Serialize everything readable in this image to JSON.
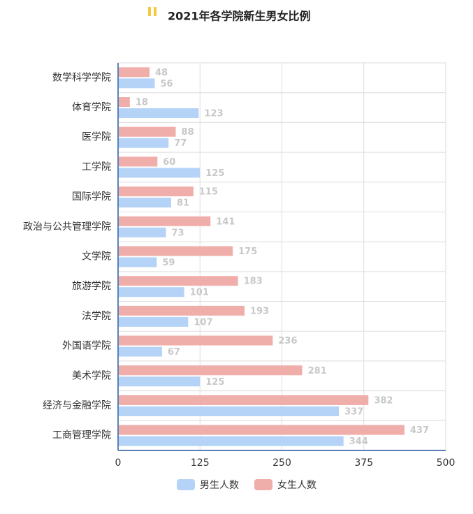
{
  "chart_data": {
    "type": "bar",
    "orientation": "horizontal",
    "title": "2021年各学院新生男女比例",
    "categories": [
      "数学科学学院",
      "体育学院",
      "医学院",
      "工学院",
      "国际学院",
      "政治与公共管理学院",
      "文学院",
      "旅游学院",
      "法学院",
      "外国语学院",
      "美术学院",
      "经济与金融学院",
      "工商管理学院"
    ],
    "series": [
      {
        "name": "男生人数",
        "color": "#b5d3f7",
        "values": [
          56,
          123,
          77,
          125,
          81,
          73,
          59,
          101,
          107,
          67,
          125,
          337,
          344
        ]
      },
      {
        "name": "女生人数",
        "color": "#f0aeab",
        "values": [
          48,
          18,
          88,
          60,
          115,
          141,
          175,
          183,
          193,
          236,
          281,
          382,
          437
        ]
      }
    ],
    "xlim": [
      0,
      500
    ],
    "xticks": [
      0,
      125,
      250,
      375,
      500
    ],
    "grid": true,
    "legend": "bottom"
  }
}
